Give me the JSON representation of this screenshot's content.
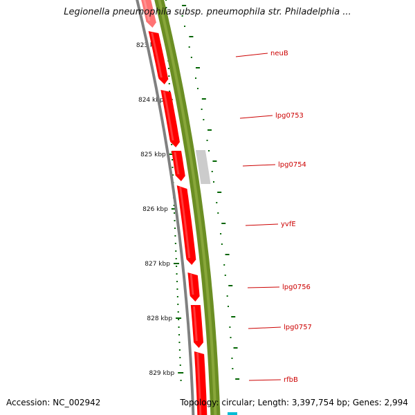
{
  "title": "Legionella pneumophila subsp. pneumophila str. Philadelphia ...",
  "footer": {
    "accession": "Accession: NC_002942",
    "summary": "Topology: circular; Length: 3,397,754 bp; Genes: 2,994"
  },
  "colors": {
    "background": "#ffffff",
    "gene_forward": "#ff0000",
    "backbone": "#808080",
    "gc_content": "#6b8e23",
    "gc_gap": "#cccccc",
    "tick": "#006400",
    "label": "#cc0000",
    "terminus": "#00bcd4"
  },
  "ruler": {
    "labels": [
      "823 kbp",
      "824 kbp",
      "825 kbp",
      "826 kbp",
      "827 kbp",
      "828 kbp",
      "829 kbp"
    ]
  },
  "genes": [
    {
      "name": "neuB"
    },
    {
      "name": "lpg0753"
    },
    {
      "name": "lpg0754"
    },
    {
      "name": "yvfE"
    },
    {
      "name": "lpg0756"
    },
    {
      "name": "lpg0757"
    },
    {
      "name": "rfbB"
    }
  ]
}
